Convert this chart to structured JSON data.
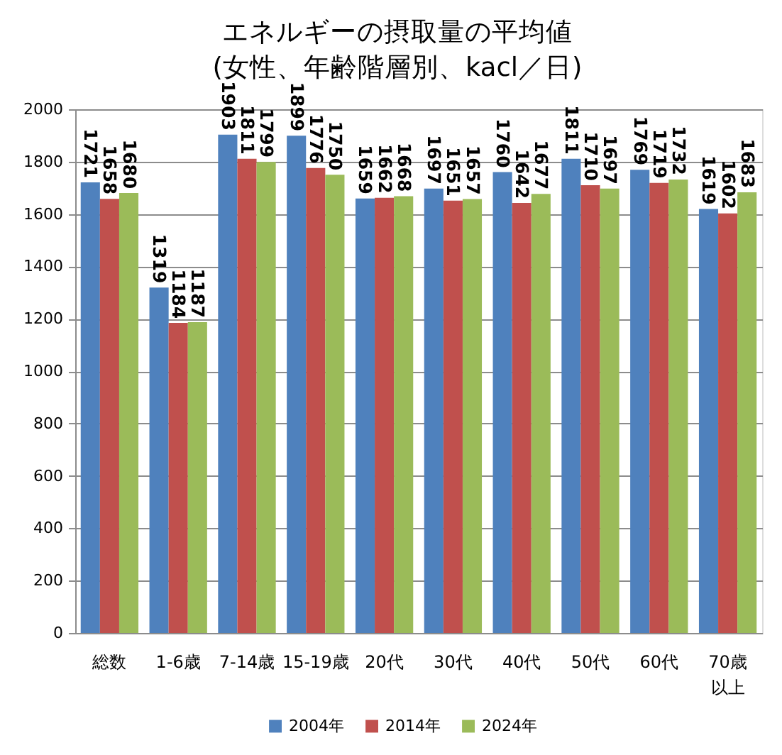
{
  "chart_data": {
    "type": "bar",
    "title": "エネルギーの摂取量の平均値\n(女性、年齢階層別、kacl／日)",
    "categories": [
      "総数",
      "1-6歳",
      "7-14歳",
      "15-19歳",
      "20代",
      "30代",
      "40代",
      "50代",
      "60代",
      "70歳以上"
    ],
    "series": [
      {
        "name": "2004年",
        "color": "#4f81bd",
        "values": [
          1721,
          1319,
          1903,
          1899,
          1659,
          1697,
          1760,
          1811,
          1769,
          1619
        ]
      },
      {
        "name": "2014年",
        "color": "#c0504d",
        "values": [
          1658,
          1184,
          1811,
          1776,
          1662,
          1651,
          1642,
          1710,
          1719,
          1602
        ]
      },
      {
        "name": "2024年",
        "color": "#9bbb59",
        "values": [
          1680,
          1187,
          1799,
          1750,
          1668,
          1657,
          1677,
          1697,
          1732,
          1683
        ]
      }
    ],
    "ylim": [
      0,
      2000
    ],
    "yticks": [
      0,
      200,
      400,
      600,
      800,
      1000,
      1200,
      1400,
      1600,
      1800,
      2000
    ],
    "grid": "y",
    "legend": "bottom",
    "data_labels": true
  }
}
